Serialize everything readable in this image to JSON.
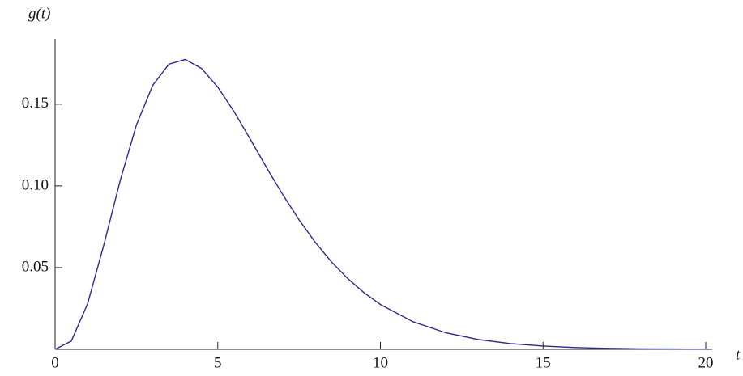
{
  "chart_data": {
    "type": "line",
    "y_label": "g(t)",
    "x_label": "t",
    "x": [
      0,
      0.5,
      1,
      1.5,
      2,
      2.5,
      3,
      3.5,
      4,
      4.5,
      5,
      5.5,
      6,
      6.5,
      7,
      7.5,
      8,
      8.5,
      9,
      9.5,
      10,
      11,
      12,
      13,
      14,
      15,
      16,
      17,
      18,
      19,
      20
    ],
    "series": [
      {
        "color": "#2a2a8a",
        "values": [
          0,
          0.0051,
          0.0279,
          0.064,
          0.1032,
          0.1373,
          0.1615,
          0.1745,
          0.1774,
          0.1719,
          0.1605,
          0.1455,
          0.1286,
          0.1112,
          0.0946,
          0.0792,
          0.0654,
          0.0534,
          0.0432,
          0.0346,
          0.0274,
          0.0169,
          0.0102,
          0.006,
          0.0035,
          0.002,
          0.0011,
          0.0006,
          0.0003,
          0.0002,
          0.0001
        ]
      }
    ],
    "xlim": [
      0,
      20
    ],
    "ylim": [
      0,
      0.19
    ],
    "xticks": [
      0,
      5,
      10,
      15,
      20
    ],
    "yticks": [
      0.05,
      {
        "value": 0.1,
        "label": "0.10"
      },
      0.15
    ]
  }
}
